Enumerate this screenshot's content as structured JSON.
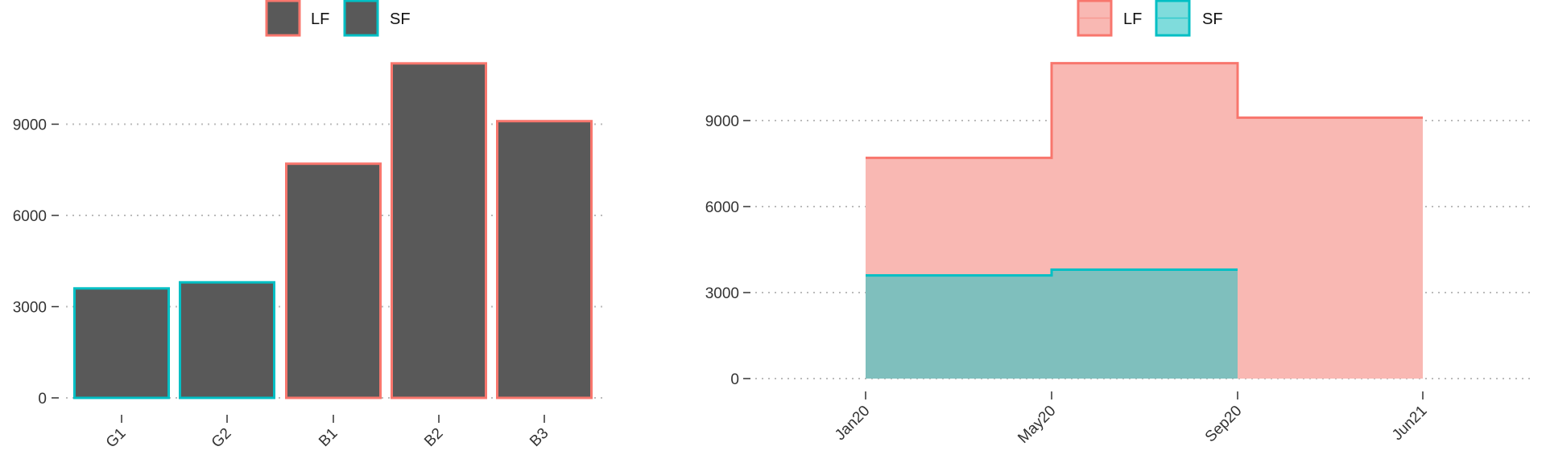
{
  "colors": {
    "lf": "#F8766D",
    "sf": "#00BFC4",
    "lf_fill": "#F9B8B3",
    "sf_fill": "#7FBFBD",
    "bar_fill": "#595959",
    "grid": "#BBBBBB",
    "axis_text": "#333333"
  },
  "chart_data": [
    {
      "type": "bar",
      "legend": [
        "LF",
        "SF"
      ],
      "legend_position": "top",
      "categories": [
        "G1",
        "G2",
        "B1",
        "B2",
        "B3"
      ],
      "values": [
        3600,
        3800,
        7700,
        11000,
        9100
      ],
      "groups": [
        "SF",
        "SF",
        "LF",
        "LF",
        "LF"
      ],
      "yticks": [
        0,
        3000,
        6000,
        9000
      ],
      "ylim": [
        0,
        11000
      ],
      "grid": "horizontal dotted"
    },
    {
      "type": "area",
      "step": true,
      "legend": [
        "LF",
        "SF"
      ],
      "legend_position": "top",
      "xticks": [
        "Jan20",
        "May20",
        "Sep20",
        "Jun21"
      ],
      "yticks": [
        0,
        3000,
        6000,
        9000
      ],
      "ylim": [
        0,
        11000
      ],
      "grid": "horizontal dotted",
      "series": [
        {
          "name": "LF",
          "steps": [
            {
              "from": "Jan20",
              "to": "May20",
              "value": 7700
            },
            {
              "from": "May20",
              "to": "Sep20",
              "value": 11000
            },
            {
              "from": "Sep20",
              "to": "Jun21",
              "value": 9100
            }
          ]
        },
        {
          "name": "SF",
          "steps": [
            {
              "from": "Jan20",
              "to": "May20",
              "value": 3600
            },
            {
              "from": "May20",
              "to": "Sep20",
              "value": 3800
            }
          ]
        }
      ]
    }
  ]
}
